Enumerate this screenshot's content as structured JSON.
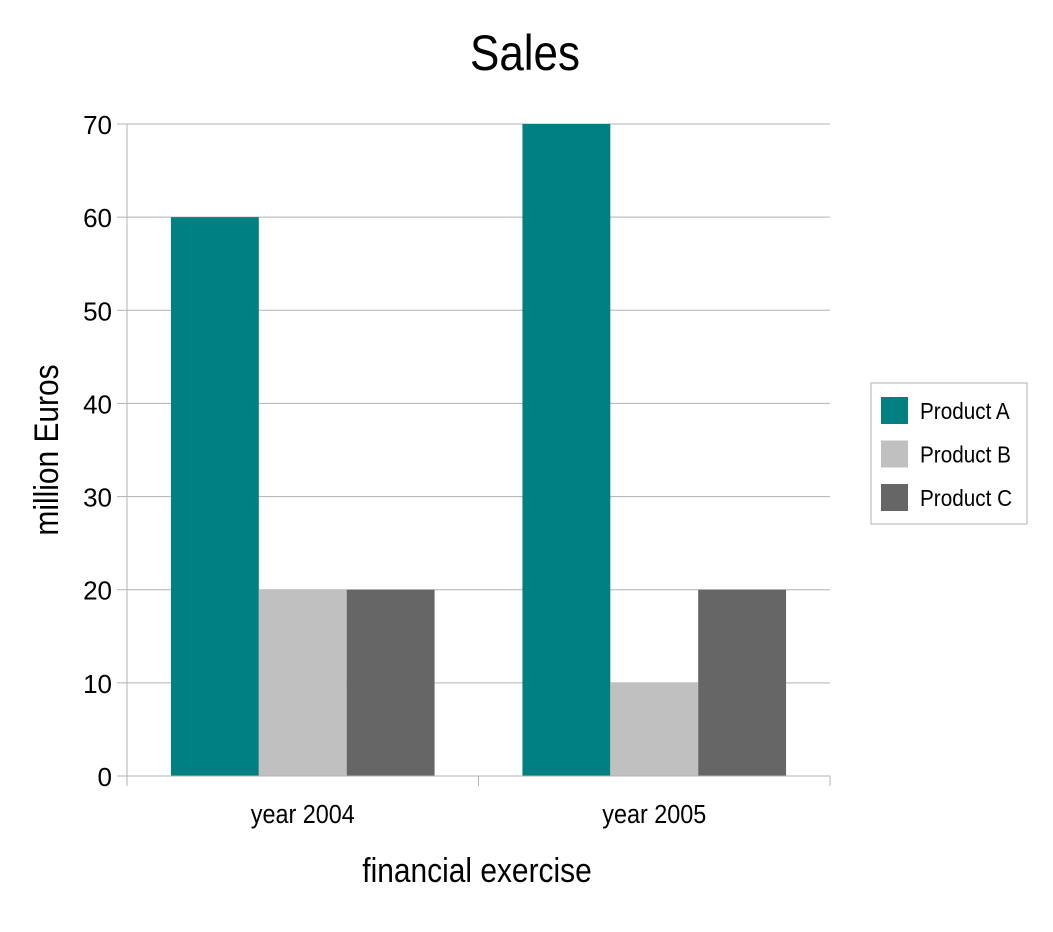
{
  "chart_data": {
    "type": "bar",
    "title": "Sales",
    "xlabel": "financial exercise",
    "ylabel": "million Euros",
    "categories": [
      "year 2004",
      "year 2005"
    ],
    "series": [
      {
        "name": "Product A",
        "color": "#008080",
        "values": [
          60,
          70
        ]
      },
      {
        "name": "Product B",
        "color": "#c0c0c0",
        "values": [
          20,
          10
        ]
      },
      {
        "name": "Product C",
        "color": "#666666",
        "values": [
          20,
          20
        ]
      }
    ],
    "ylim": [
      0,
      70
    ],
    "yticks": [
      "0",
      "10",
      "20",
      "30",
      "40",
      "50",
      "60",
      "70"
    ],
    "grid": true,
    "legend": "right"
  }
}
